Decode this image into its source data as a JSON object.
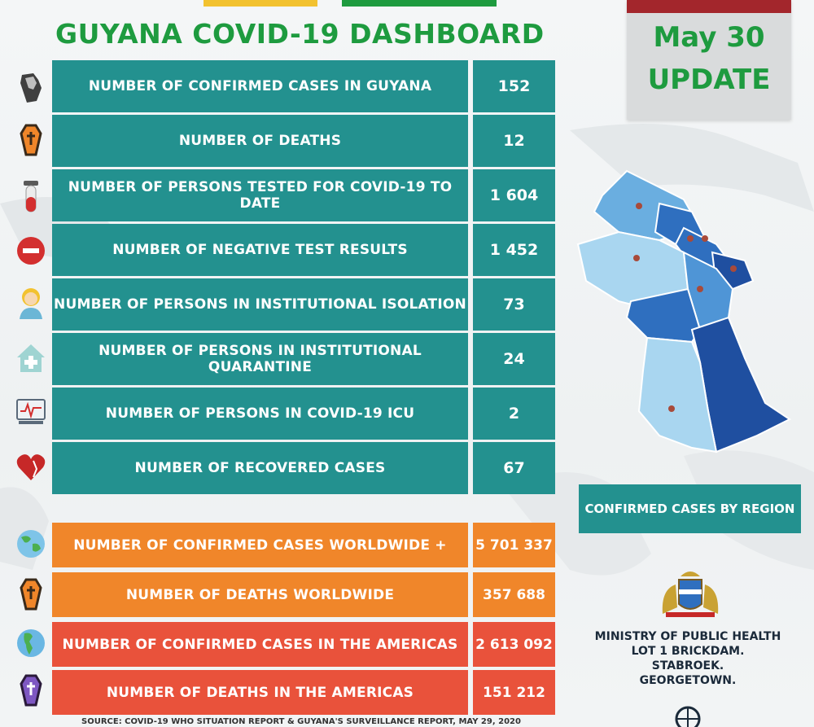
{
  "title": "GUYANA COVID-19 DASHBOARD",
  "date_card": {
    "line1": "May 30",
    "line2": "UPDATE"
  },
  "rows": [
    {
      "label": "NUMBER OF CONFIRMED CASES IN GUYANA",
      "value": "152",
      "icon": "guyana-map-icon"
    },
    {
      "label": "NUMBER OF DEATHS",
      "value": "12",
      "icon": "coffin-icon"
    },
    {
      "label": "NUMBER OF PERSONS TESTED FOR COVID-19 TO DATE",
      "value": "1 604",
      "icon": "test-tube-icon"
    },
    {
      "label": "NUMBER OF NEGATIVE TEST RESULTS",
      "value": "1 452",
      "icon": "minus-circle-icon"
    },
    {
      "label": "NUMBER OF PERSONS IN INSTITUTIONAL ISOLATION",
      "value": "73",
      "icon": "nurse-icon"
    },
    {
      "label": "NUMBER OF PERSONS IN INSTITUTIONAL QUARANTINE",
      "value": "24",
      "icon": "hospital-house-icon"
    },
    {
      "label": "NUMBER OF PERSONS IN COVID-19 ICU",
      "value": "2",
      "icon": "monitor-icon"
    },
    {
      "label": "NUMBER OF RECOVERED CASES",
      "value": "67",
      "icon": "heart-icon"
    }
  ],
  "world_rows": [
    {
      "label": "NUMBER  OF CONFIRMED CASES WORLDWIDE +",
      "value": "5 701 337",
      "icon": "globe-icon"
    },
    {
      "label": "NUMBER OF DEATHS WORLDWIDE",
      "value": "357 688",
      "icon": "coffin-icon"
    },
    {
      "label": "NUMBER OF CONFIRMED CASES IN THE AMERICAS",
      "value": "2 613 092",
      "icon": "americas-globe-icon"
    },
    {
      "label": "NUMBER OF DEATHS IN THE AMERICAS",
      "value": "151 212",
      "icon": "purple-coffin-icon"
    }
  ],
  "region_label": "CONFIRMED CASES BY REGION",
  "ministry": {
    "line1": "MINISTRY OF PUBLIC HEALTH",
    "line2": "LOT 1 BRICKDAM.",
    "line3": "STABROEK.",
    "line4": "GEORGETOWN."
  },
  "source": "SOURCE: COVID-19 WHO SITUATION REPORT & GUYANA'S SURVEILLANCE REPORT, MAY 29, 2020",
  "colors": {
    "teal": "#23918f",
    "orange": "#f0862a",
    "red": "#e9523b",
    "title_green": "#1e9b3f"
  }
}
